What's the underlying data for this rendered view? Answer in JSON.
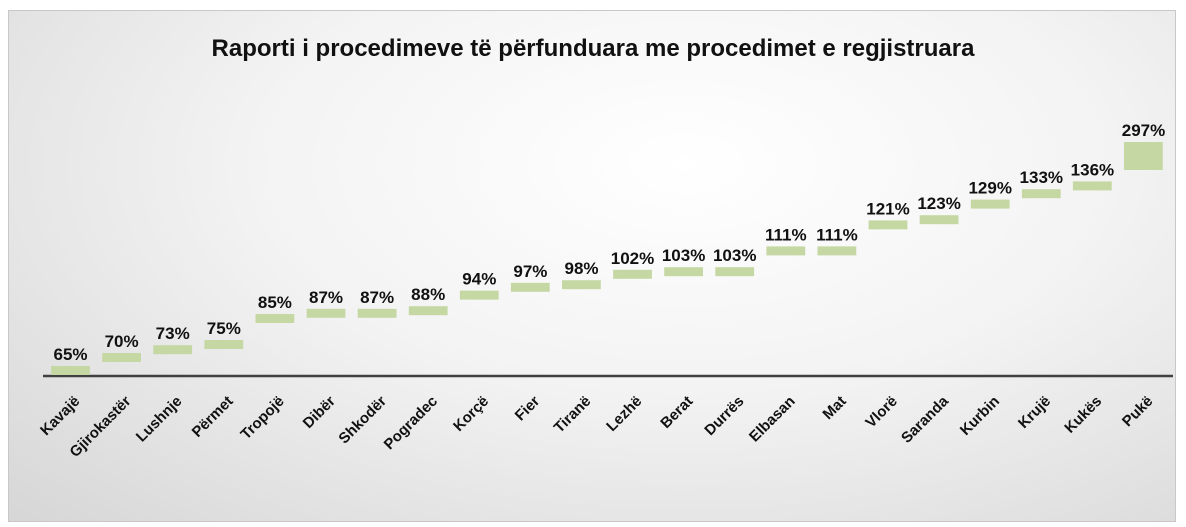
{
  "chart_data": {
    "type": "bar",
    "title": "Raporti i procedimeve të përfunduara me procedimet e regjistruara",
    "categories": [
      "Kavajë",
      "Gjirokastër",
      "Lushnje",
      "Përmet",
      "Tropojë",
      "Dibër",
      "Shkodër",
      "Pogradec",
      "Korçë",
      "Fier",
      "Tiranë",
      "Lezhë",
      "Berat",
      "Durrës",
      "Elbasan",
      "Mat",
      "Vlorë",
      "Saranda",
      "Kurbin",
      "Krujë",
      "Kukës",
      "Pukë"
    ],
    "values": [
      65,
      70,
      73,
      75,
      85,
      87,
      87,
      88,
      94,
      97,
      98,
      102,
      103,
      103,
      111,
      111,
      121,
      123,
      129,
      133,
      136,
      297
    ],
    "data_labels": [
      "65%",
      "70%",
      "73%",
      "75%",
      "85%",
      "87%",
      "87%",
      "88%",
      "94%",
      "97%",
      "98%",
      "102%",
      "103%",
      "103%",
      "111%",
      "111%",
      "121%",
      "123%",
      "129%",
      "133%",
      "136%",
      "297%"
    ],
    "value_unit": "%",
    "bar_color": "#c5d8a4",
    "axis_color": "#404040",
    "xlabel": "",
    "ylabel": "",
    "grid": false,
    "legend": "none"
  }
}
